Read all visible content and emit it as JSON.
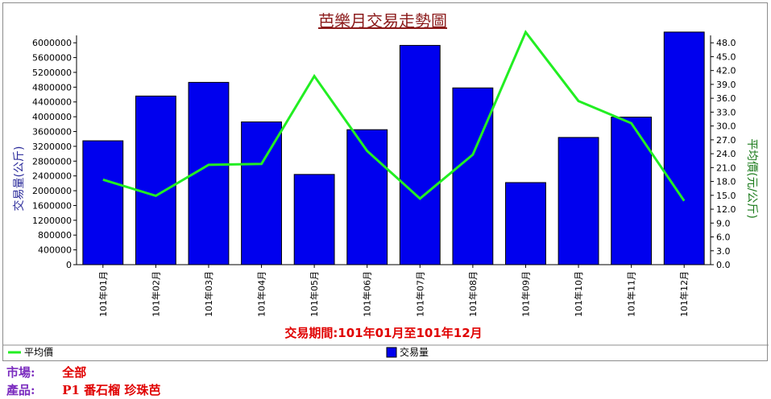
{
  "chart_data": {
    "type": "bar+line",
    "title": "芭樂月交易走勢圖",
    "xlabel": "交易期間:101年01月至101年12月",
    "categories": [
      "101年01月",
      "101年02月",
      "101年03月",
      "101年04月",
      "101年05月",
      "101年06月",
      "101年07月",
      "101年08月",
      "101年09月",
      "101年10月",
      "101年11月",
      "101年12月"
    ],
    "series": [
      {
        "name": "交易量",
        "axis": "left",
        "type": "bar",
        "color": "#0000ee",
        "values": [
          3350000,
          4560000,
          4930000,
          3860000,
          2440000,
          3650000,
          5930000,
          4780000,
          2220000,
          3440000,
          3990000,
          6290000
        ]
      },
      {
        "name": "平均價",
        "axis": "right",
        "type": "line",
        "color": "#22ee22",
        "values": [
          18.4,
          14.9,
          21.6,
          21.8,
          40.8,
          24.6,
          14.3,
          23.8,
          50.3,
          35.4,
          30.6,
          13.8
        ]
      }
    ],
    "y_left": {
      "label": "交易量(公斤)",
      "ylim": [
        0,
        6200000
      ],
      "ticks": [
        "0",
        "400000",
        "800000",
        "1200000",
        "1600000",
        "2000000",
        "2400000",
        "2800000",
        "3200000",
        "3600000",
        "4000000",
        "4400000",
        "4800000",
        "5200000",
        "5600000",
        "6000000"
      ]
    },
    "y_right": {
      "label": "平均價(元/公斤)",
      "ylim": [
        0,
        49.6
      ],
      "ticks": [
        "0.0",
        "3.0",
        "6.0",
        "9.0",
        "12.0",
        "15.0",
        "18.0",
        "21.0",
        "24.0",
        "27.0",
        "30.0",
        "33.0",
        "36.0",
        "39.0",
        "42.0",
        "45.0",
        "48.0"
      ]
    },
    "legend": [
      {
        "name": "平均價",
        "kind": "line",
        "color": "#22ee22",
        "placement": "bottom-left"
      },
      {
        "name": "交易量",
        "kind": "bar",
        "color": "#0000ee",
        "placement": "bottom-center"
      }
    ],
    "grid": false
  },
  "info": {
    "market_label": "市場:",
    "market_value": "全部",
    "product_label": "產品:",
    "product_value": "P1 番石榴 珍珠芭"
  }
}
